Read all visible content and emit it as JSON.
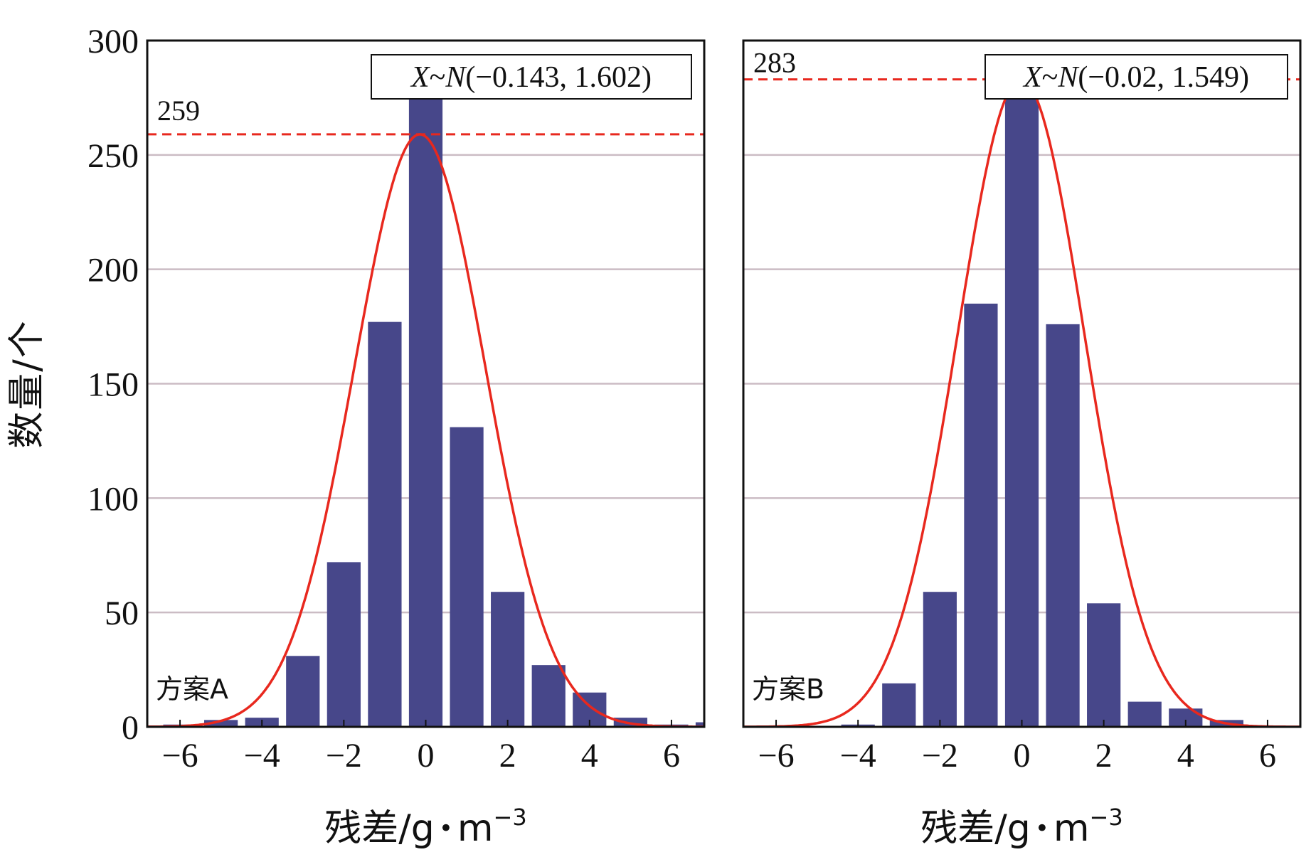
{
  "y_axis_label": "数量/个",
  "colors": {
    "bar": "#47478a",
    "curve": "#e8281e",
    "ref_line": "#e8281e",
    "grid": "#cbbcc4"
  },
  "chart_data": [
    {
      "type": "bar",
      "panel_label": "方案A",
      "distribution_label": "X~N(−0.143, 1.602)",
      "distribution": {
        "mean": -0.143,
        "std": 1.602
      },
      "xlabel": "残差/g·m−3",
      "xlabel_parts": {
        "base": "残差/g",
        "dot": "•",
        "unit": "m",
        "sup": "−3"
      },
      "ylabel": "数量/个",
      "xlim": [
        -6.8,
        6.8
      ],
      "ylim": [
        0,
        300
      ],
      "xticks": [
        -6,
        -4,
        -2,
        0,
        2,
        4,
        6
      ],
      "xtick_labels": [
        "−6",
        "−4",
        "−2",
        "0",
        "2",
        "4",
        "6"
      ],
      "yticks": [
        0,
        50,
        100,
        150,
        200,
        250,
        300
      ],
      "ytick_labels": [
        "0",
        "50",
        "100",
        "150",
        "200",
        "250",
        "300"
      ],
      "grid": true,
      "bins": [
        -6,
        -5,
        -4,
        -3,
        -2,
        -1,
        0,
        1,
        2,
        3,
        4,
        5,
        6,
        7
      ],
      "values": [
        1,
        3,
        4,
        31,
        72,
        177,
        280,
        131,
        59,
        27,
        15,
        4,
        1,
        2
      ],
      "curve_peak": 259,
      "peak_line": {
        "value": 259,
        "label": "259"
      }
    },
    {
      "type": "bar",
      "panel_label": "方案B",
      "distribution_label": "X~N(−0.02, 1.549)",
      "distribution": {
        "mean": -0.02,
        "std": 1.549
      },
      "xlabel": "残差/g·m−3",
      "xlabel_parts": {
        "base": "残差/g",
        "dot": "•",
        "unit": "m",
        "sup": "−3"
      },
      "xlim": [
        -6.8,
        6.8
      ],
      "ylim": [
        0,
        300
      ],
      "xticks": [
        -6,
        -4,
        -2,
        0,
        2,
        4,
        6
      ],
      "xtick_labels": [
        "−6",
        "−4",
        "−2",
        "0",
        "2",
        "4",
        "6"
      ],
      "grid": true,
      "bins": [
        -6,
        -5,
        -4,
        -3,
        -2,
        -1,
        0,
        1,
        2,
        3,
        4,
        5,
        6
      ],
      "values": [
        0,
        0,
        1,
        19,
        59,
        185,
        280,
        176,
        54,
        11,
        8,
        3,
        0
      ],
      "curve_peak": 283,
      "peak_line": {
        "value": 283,
        "label": "283"
      }
    }
  ]
}
